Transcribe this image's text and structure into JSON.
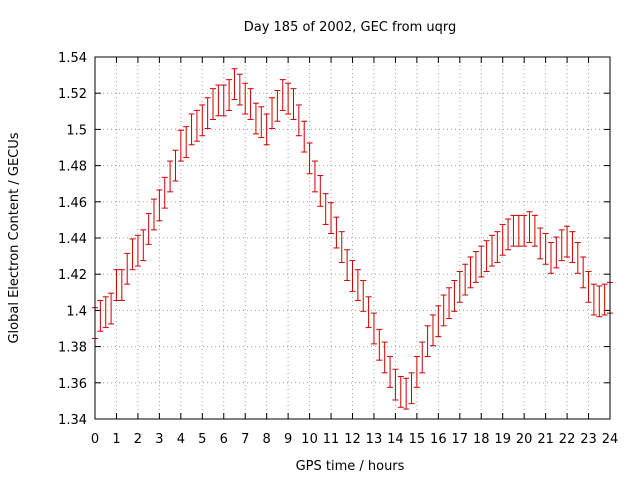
{
  "chart_data": {
    "type": "scatter",
    "title": "Day 185 of 2002, GEC from uqrg",
    "xlabel": "GPS time / hours",
    "ylabel": "Global Electron Content / GECUs",
    "xlim": [
      0,
      24
    ],
    "ylim": [
      1.34,
      1.54
    ],
    "xticks": [
      0,
      1,
      2,
      3,
      4,
      5,
      6,
      7,
      8,
      9,
      10,
      11,
      12,
      13,
      14,
      15,
      16,
      17,
      18,
      19,
      20,
      21,
      22,
      23,
      24
    ],
    "xtick_labels": [
      "0",
      "1",
      "2",
      "3",
      "4",
      "5",
      "6",
      "7",
      "8",
      "9",
      "10",
      "11",
      "12",
      "13",
      "14",
      "15",
      "16",
      "17",
      "18",
      "19",
      "20",
      "21",
      "22",
      "23",
      "24"
    ],
    "yticks": [
      1.34,
      1.36,
      1.38,
      1.4,
      1.42,
      1.44,
      1.46,
      1.48,
      1.5,
      1.52,
      1.54
    ],
    "ytick_labels": [
      "1.34",
      "1.36",
      "1.38",
      "1.4",
      "1.42",
      "1.44",
      "1.46",
      "1.48",
      "1.5",
      "1.52",
      "1.54"
    ],
    "grid": true,
    "color": "#cc0000",
    "error": 0.0085,
    "series": [
      {
        "x": [
          0,
          0.25,
          0.5,
          0.75,
          1,
          1.25,
          1.5,
          1.75,
          2,
          2.25,
          2.5,
          2.75,
          3,
          3.25,
          3.5,
          3.75,
          4,
          4.25,
          4.5,
          4.75,
          5,
          5.25,
          5.5,
          5.75,
          6,
          6.25,
          6.5,
          6.75,
          7,
          7.25,
          7.5,
          7.75,
          8,
          8.25,
          8.5,
          8.75,
          9,
          9.25,
          9.5,
          9.75,
          10,
          10.25,
          10.5,
          10.75,
          11,
          11.25,
          11.5,
          11.75,
          12,
          12.25,
          12.5,
          12.75,
          13,
          13.25,
          13.5,
          13.75,
          14,
          14.25,
          14.5,
          14.75,
          15,
          15.25,
          15.5,
          15.75,
          16,
          16.25,
          16.5,
          16.75,
          17,
          17.25,
          17.5,
          17.75,
          18,
          18.25,
          18.5,
          18.75,
          19,
          19.25,
          19.5,
          19.75,
          20,
          20.25,
          20.5,
          20.75,
          21,
          21.25,
          21.5,
          21.75,
          22,
          22.25,
          22.5,
          22.75,
          23,
          23.25,
          23.5,
          23.75,
          24
        ],
        "y": [
          1.393,
          1.397,
          1.399,
          1.401,
          1.414,
          1.414,
          1.423,
          1.431,
          1.433,
          1.436,
          1.445,
          1.453,
          1.458,
          1.465,
          1.474,
          1.48,
          1.491,
          1.493,
          1.5,
          1.502,
          1.505,
          1.509,
          1.514,
          1.516,
          1.516,
          1.519,
          1.525,
          1.522,
          1.517,
          1.514,
          1.506,
          1.504,
          1.5,
          1.509,
          1.513,
          1.519,
          1.517,
          1.514,
          1.505,
          1.496,
          1.484,
          1.474,
          1.466,
          1.456,
          1.451,
          1.443,
          1.435,
          1.425,
          1.419,
          1.414,
          1.408,
          1.399,
          1.39,
          1.381,
          1.374,
          1.366,
          1.359,
          1.355,
          1.354,
          1.357,
          1.366,
          1.374,
          1.383,
          1.389,
          1.394,
          1.4,
          1.404,
          1.408,
          1.413,
          1.417,
          1.421,
          1.424,
          1.427,
          1.43,
          1.433,
          1.435,
          1.439,
          1.442,
          1.444,
          1.444,
          1.444,
          1.446,
          1.444,
          1.437,
          1.434,
          1.429,
          1.432,
          1.436,
          1.438,
          1.435,
          1.429,
          1.421,
          1.413,
          1.406,
          1.405,
          1.406,
          1.407
        ]
      }
    ]
  }
}
